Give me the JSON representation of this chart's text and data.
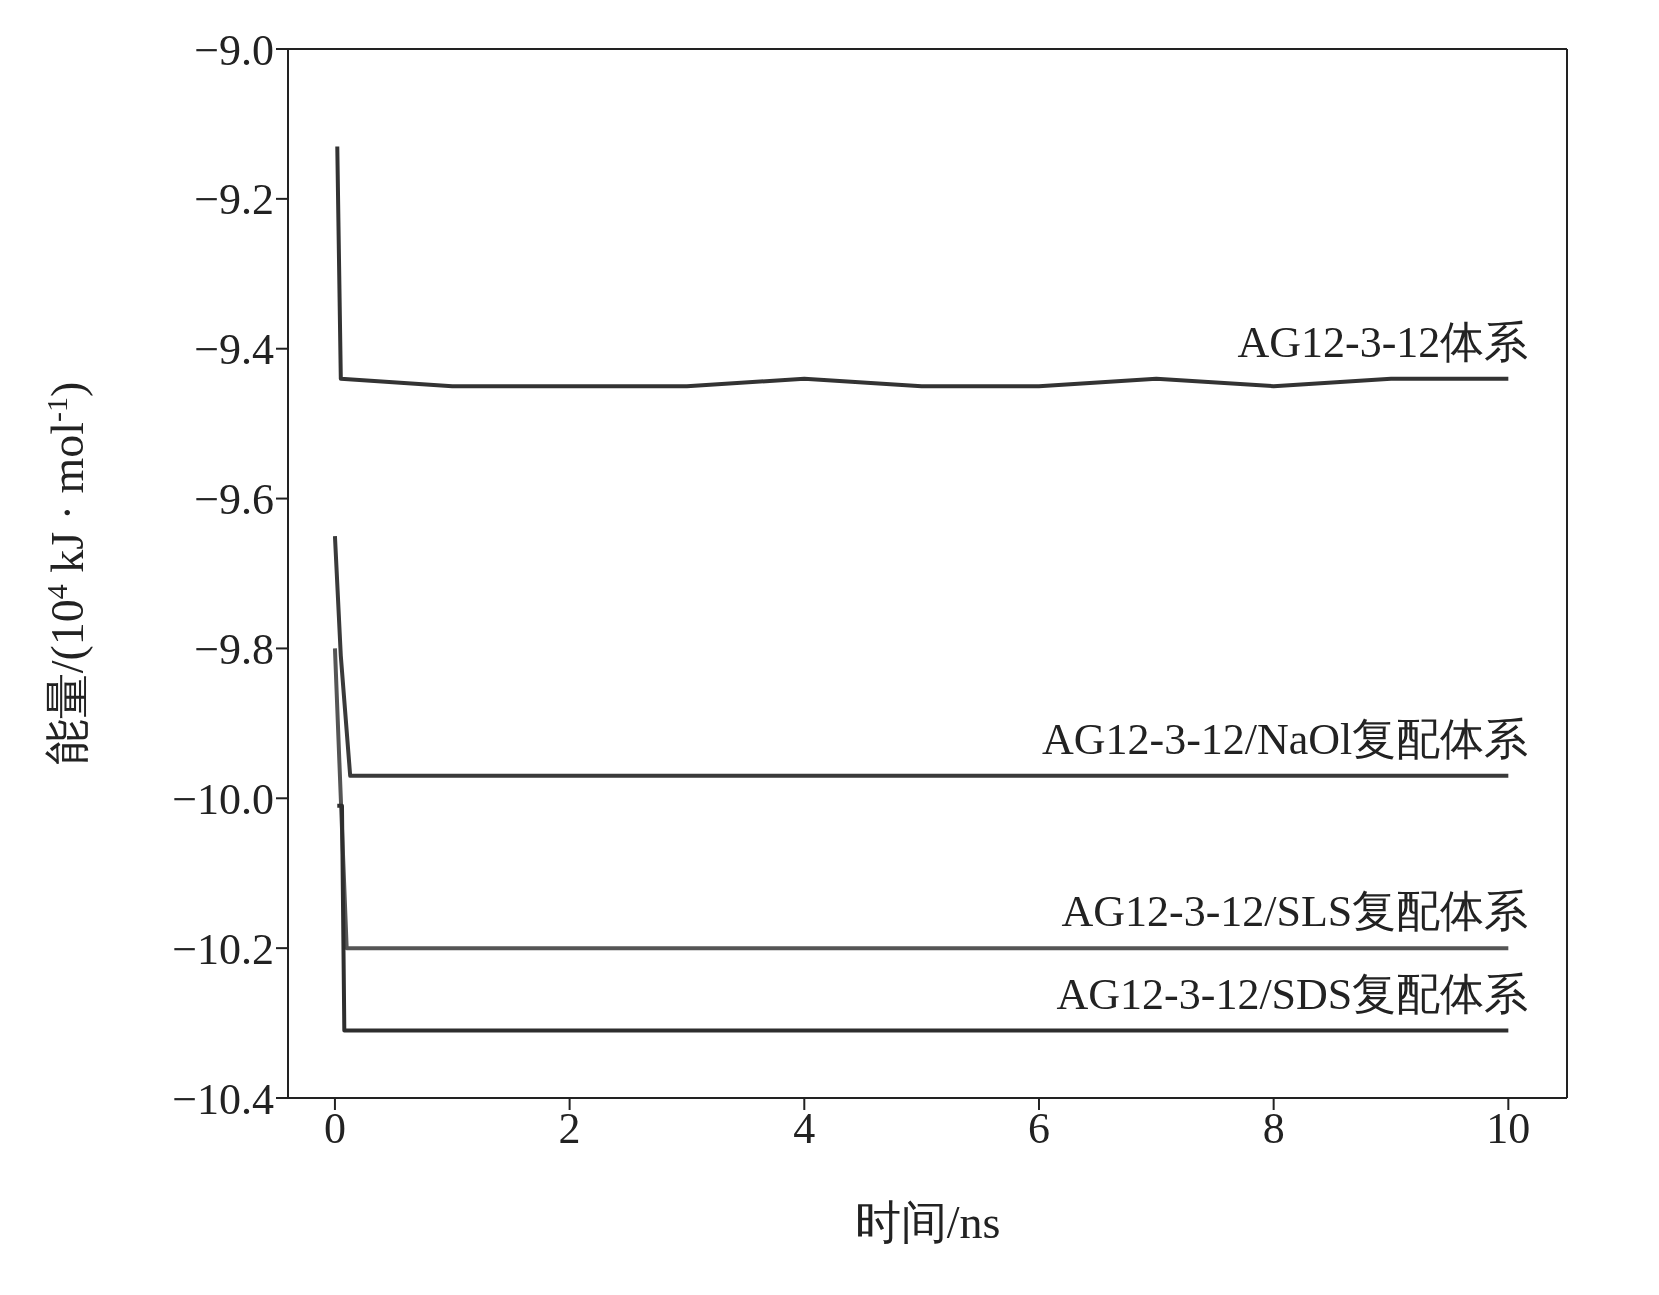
{
  "chart_data": {
    "type": "line",
    "xlabel": "时间/ns",
    "ylabel": "能量/(10$^{4}$ kJ · mol$^{-1}$)",
    "xlim": [
      -0.4,
      10.5
    ],
    "xticks": [
      0,
      2,
      4,
      6,
      8,
      10
    ],
    "ylim": [
      -10.4,
      -9.0
    ],
    "yticks": [
      {
        "value": -9.0,
        "label": "−9.0"
      },
      {
        "value": -9.2,
        "label": "−9.2"
      },
      {
        "value": -9.4,
        "label": "−9.4"
      },
      {
        "value": -9.6,
        "label": "−9.6"
      },
      {
        "value": -9.8,
        "label": "−9.8"
      },
      {
        "value": -10.0,
        "label": "−10.0"
      },
      {
        "value": -10.2,
        "label": "−10.2"
      },
      {
        "value": -10.4,
        "label": "−10.4"
      }
    ],
    "grid": false,
    "legend": false,
    "marker": "none",
    "line_style": "solid",
    "series": [
      {
        "name": "AG12-3-12体系",
        "color": "#333333",
        "x": [
          0.02,
          0.05,
          1,
          2,
          3,
          4,
          5,
          6,
          7,
          8,
          9,
          10
        ],
        "values": [
          -9.13,
          -9.44,
          -9.45,
          -9.45,
          -9.45,
          -9.44,
          -9.45,
          -9.45,
          -9.44,
          -9.45,
          -9.44,
          -9.44
        ]
      },
      {
        "name": "AG12-3-12/NaOl复配体系",
        "color": "#3a3a3a",
        "x": [
          0.0,
          0.05,
          0.13,
          1,
          2,
          3,
          4,
          5,
          6,
          7,
          8,
          9,
          10
        ],
        "values": [
          -9.65,
          -9.81,
          -9.97,
          -9.97,
          -9.97,
          -9.97,
          -9.97,
          -9.97,
          -9.97,
          -9.97,
          -9.97,
          -9.97,
          -9.97
        ]
      },
      {
        "name": "AG12-3-12/SLS复配体系",
        "color": "#555555",
        "x": [
          0.0,
          0.1,
          0.15,
          1,
          2,
          3,
          4,
          5,
          6,
          7,
          8,
          9,
          10
        ],
        "values": [
          -9.8,
          -10.2,
          -10.2,
          -10.2,
          -10.2,
          -10.2,
          -10.2,
          -10.2,
          -10.2,
          -10.2,
          -10.2,
          -10.2,
          -10.2
        ]
      },
      {
        "name": "AG12-3-12/SDS复配体系",
        "color": "#2e2e2e",
        "x": [
          0.02,
          0.06,
          0.08,
          1,
          2,
          3,
          4,
          5,
          6,
          7,
          8,
          9,
          10
        ],
        "values": [
          -10.01,
          -10.01,
          -10.31,
          -10.31,
          -10.31,
          -10.31,
          -10.31,
          -10.31,
          -10.31,
          -10.31,
          -10.31,
          -10.31,
          -10.31
        ]
      }
    ]
  }
}
